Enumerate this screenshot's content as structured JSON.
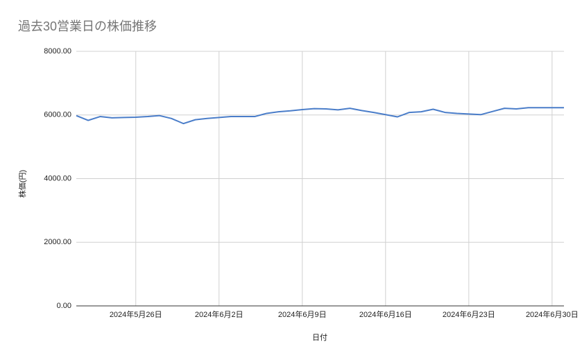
{
  "chart_data": {
    "type": "line",
    "title": "過去30営業日の株価推移",
    "x_label": "日付",
    "y_label": "株価(円)",
    "x": [
      "2024-05-21",
      "2024-05-22",
      "2024-05-23",
      "2024-05-24",
      "2024-05-25",
      "2024-05-26",
      "2024-05-27",
      "2024-05-28",
      "2024-05-29",
      "2024-05-30",
      "2024-05-31",
      "2024-06-01",
      "2024-06-02",
      "2024-06-03",
      "2024-06-04",
      "2024-06-05",
      "2024-06-06",
      "2024-06-07",
      "2024-06-08",
      "2024-06-09",
      "2024-06-10",
      "2024-06-11",
      "2024-06-12",
      "2024-06-13",
      "2024-06-14",
      "2024-06-15",
      "2024-06-16",
      "2024-06-17",
      "2024-06-18",
      "2024-06-19",
      "2024-06-20",
      "2024-06-21",
      "2024-06-22",
      "2024-06-23",
      "2024-06-24",
      "2024-06-25",
      "2024-06-26",
      "2024-06-27",
      "2024-06-28",
      "2024-06-29",
      "2024-06-30",
      "2024-07-01"
    ],
    "values": [
      5980,
      5830,
      5950,
      5910,
      5920,
      5930,
      5950,
      5980,
      5890,
      5730,
      5850,
      5890,
      5920,
      5950,
      5950,
      5950,
      6050,
      6100,
      6130,
      6170,
      6200,
      6190,
      6160,
      6210,
      6140,
      6080,
      6010,
      5940,
      6080,
      6100,
      6180,
      6080,
      6050,
      6030,
      6010,
      6110,
      6210,
      6190,
      6230,
      6230,
      6230,
      6230
    ],
    "color": "#4a7dc9",
    "xlim": [
      "2024-05-21",
      "2024-07-01"
    ],
    "xticks": [
      {
        "value": "2024-05-26",
        "label": "2024年5月26日"
      },
      {
        "value": "2024-06-02",
        "label": "2024年6月2日"
      },
      {
        "value": "2024-06-09",
        "label": "2024年6月9日"
      },
      {
        "value": "2024-06-16",
        "label": "2024年6月16日"
      },
      {
        "value": "2024-06-23",
        "label": "2024年6月23日"
      },
      {
        "value": "2024-06-30",
        "label": "2024年6月30日"
      }
    ],
    "ylim": [
      0,
      8000
    ],
    "yticks": [
      {
        "value": 0,
        "label": "0.00"
      },
      {
        "value": 2000,
        "label": "2000.00"
      },
      {
        "value": 4000,
        "label": "4000.00"
      },
      {
        "value": 6000,
        "label": "6000.00"
      },
      {
        "value": 8000,
        "label": "8000.00"
      }
    ],
    "grid": true
  }
}
